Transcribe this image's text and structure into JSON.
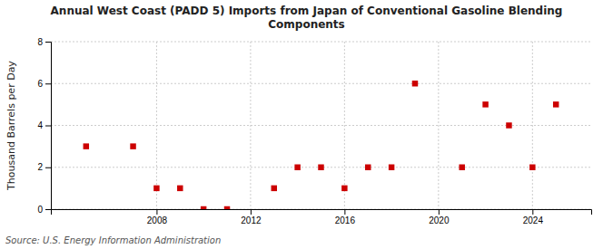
{
  "chart_data": {
    "type": "scatter",
    "title": "Annual West Coast (PADD 5) Imports from Japan of Conventional Gasoline Blending\nComponents",
    "ylabel": "Thousand Barrels per Day",
    "source": "Source: U.S. Energy Information Administration",
    "x": [
      2005,
      2007,
      2008,
      2009,
      2010,
      2011,
      2013,
      2014,
      2015,
      2016,
      2017,
      2018,
      2019,
      2021,
      2022,
      2023,
      2024,
      2025
    ],
    "values": [
      3,
      3,
      1,
      1,
      0,
      0,
      1,
      2,
      2,
      1,
      2,
      2,
      6,
      2,
      5,
      4,
      2,
      5
    ],
    "color": "#cc0000",
    "marker": "square",
    "xlim": [
      2003.5,
      2026.5
    ],
    "ylim": [
      0,
      8
    ],
    "xticks": [
      2008,
      2012,
      2016,
      2020,
      2024
    ],
    "yticks": [
      0,
      2,
      4,
      6,
      8
    ],
    "grid": true
  }
}
